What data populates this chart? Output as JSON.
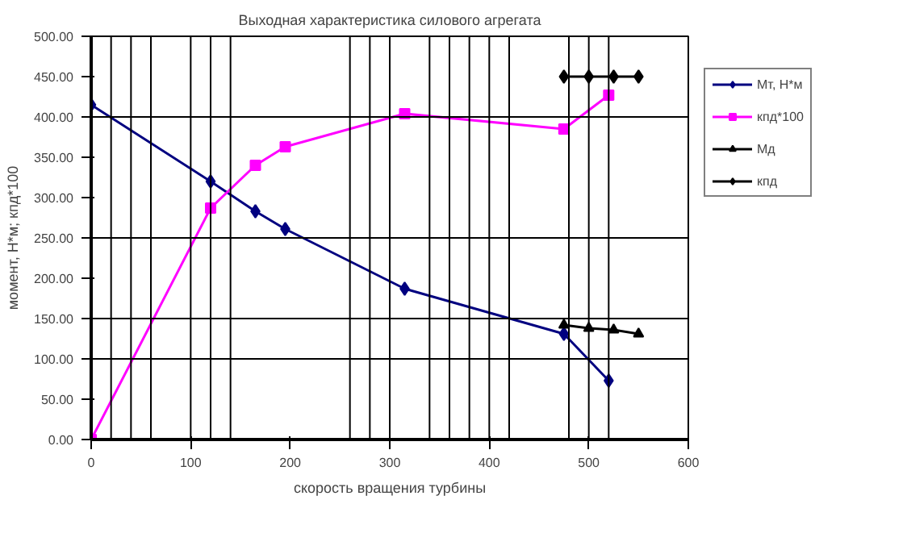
{
  "chart_data": {
    "type": "line",
    "title": "Выходная характеристика силового агрегата",
    "xlabel": "скорость вращения турбины",
    "ylabel": "момент, Н*м; кпд*100",
    "xlim": [
      0,
      600
    ],
    "ylim": [
      0,
      500
    ],
    "xticks": [
      0,
      100,
      200,
      300,
      400,
      500,
      600
    ],
    "yticks": [
      {
        "value": 0,
        "label": "0.00"
      },
      {
        "value": 50,
        "label": "50.00"
      },
      {
        "value": 100,
        "label": "100.00"
      },
      {
        "value": 150,
        "label": "150.00"
      },
      {
        "value": 200,
        "label": "200.00"
      },
      {
        "value": 250,
        "label": "250.00"
      },
      {
        "value": 300,
        "label": "300.00"
      },
      {
        "value": 350,
        "label": "350.00"
      },
      {
        "value": 400,
        "label": "400.00"
      },
      {
        "value": 450,
        "label": "450.00"
      },
      {
        "value": 500,
        "label": "500.00"
      }
    ],
    "grid": false,
    "legend": "right",
    "series": [
      {
        "name": "Мт, Н*м",
        "color": "#000080",
        "marker": "diamond",
        "x": [
          0,
          120,
          165,
          195,
          315,
          475,
          520
        ],
        "values": [
          415,
          320,
          283,
          261,
          187,
          131,
          73
        ]
      },
      {
        "name": "кпд*100",
        "color": "#ff00ff",
        "marker": "square",
        "x": [
          0,
          120,
          165,
          195,
          315,
          475,
          520
        ],
        "values": [
          0,
          287,
          340,
          363,
          404,
          385,
          427
        ]
      },
      {
        "name": "Мд",
        "color": "#000000",
        "marker": "triangle",
        "x": [
          475,
          500,
          525,
          550
        ],
        "values": [
          142,
          138,
          136,
          131
        ]
      },
      {
        "name": "кпд",
        "color": "#000000",
        "marker": "diamond",
        "x": [
          475,
          500,
          525,
          550
        ],
        "values": [
          450,
          450,
          450,
          450
        ]
      }
    ],
    "ref_lines": [
      {
        "axis": "x",
        "value": 20,
        "color": "#000000"
      },
      {
        "axis": "x",
        "value": 40,
        "color": "#000000"
      },
      {
        "axis": "x",
        "value": 60,
        "color": "#000000"
      },
      {
        "axis": "x",
        "value": 100,
        "color": "#000000"
      },
      {
        "axis": "x",
        "value": 120,
        "color": "#000000"
      },
      {
        "axis": "x",
        "value": 140,
        "color": "#000000"
      },
      {
        "axis": "x",
        "value": 260,
        "color": "#000000"
      },
      {
        "axis": "x",
        "value": 280,
        "color": "#000000"
      },
      {
        "axis": "x",
        "value": 300,
        "color": "#000000"
      },
      {
        "axis": "x",
        "value": 340,
        "color": "#000000"
      },
      {
        "axis": "x",
        "value": 360,
        "color": "#000000"
      },
      {
        "axis": "x",
        "value": 380,
        "color": "#000000"
      },
      {
        "axis": "x",
        "value": 400,
        "color": "#000000"
      },
      {
        "axis": "x",
        "value": 420,
        "color": "#000000"
      },
      {
        "axis": "x",
        "value": 480,
        "color": "#000000"
      },
      {
        "axis": "x",
        "value": 500,
        "color": "#000000"
      },
      {
        "axis": "x",
        "value": 520,
        "color": "#000000"
      },
      {
        "axis": "y",
        "value": 100,
        "color": "#000000"
      },
      {
        "axis": "y",
        "value": 150,
        "color": "#000000"
      },
      {
        "axis": "y",
        "value": 250,
        "color": "#000000"
      },
      {
        "axis": "y",
        "value": 400,
        "color": "#000000"
      }
    ]
  }
}
